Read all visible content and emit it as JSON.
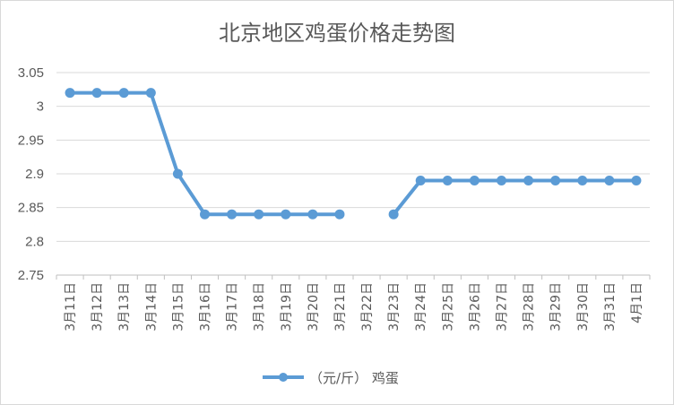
{
  "chart_data": {
    "type": "line",
    "title": "北京地区鸡蛋价格走势图",
    "xlabel": "",
    "ylabel": "",
    "ylim": [
      2.75,
      3.05
    ],
    "y_ticks": [
      "2.75",
      "2.8",
      "2.85",
      "2.9",
      "2.95",
      "3",
      "3.05"
    ],
    "grid": true,
    "legend_position": "bottom",
    "categories": [
      "3月11日",
      "3月12日",
      "3月13日",
      "3月14日",
      "3月15日",
      "3月16日",
      "3月17日",
      "3月18日",
      "3月19日",
      "3月20日",
      "3月21日",
      "3月22日",
      "3月23日",
      "3月24日",
      "3月25日",
      "3月26日",
      "3月27日",
      "3月28日",
      "3月29日",
      "3月30日",
      "3月31日",
      "4月1日"
    ],
    "series": [
      {
        "name": "（元/斤） 鸡蛋",
        "color": "#5b9bd5",
        "values": [
          3.02,
          3.02,
          3.02,
          3.02,
          2.9,
          2.84,
          2.84,
          2.84,
          2.84,
          2.84,
          2.84,
          null,
          2.84,
          2.89,
          2.89,
          2.89,
          2.89,
          2.89,
          2.89,
          2.89,
          2.89,
          2.89
        ]
      }
    ]
  }
}
